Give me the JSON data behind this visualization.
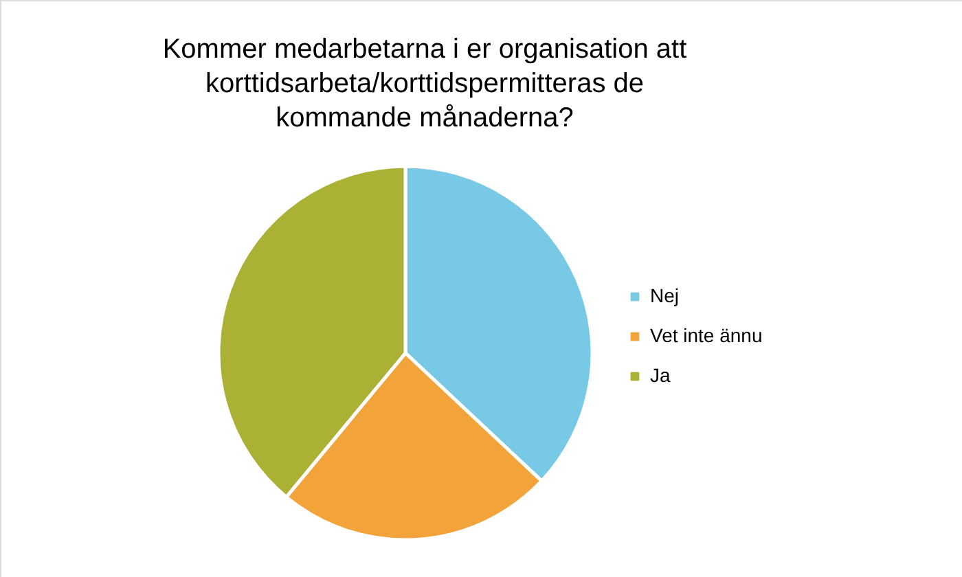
{
  "chart_data": {
    "type": "pie",
    "title": "Kommer medarbetarna i er organisation att korttidsarbeta/korttidspermitteras de kommande månaderna?",
    "categories": [
      "Nej",
      "Vet inte ännu",
      "Ja"
    ],
    "values": [
      37,
      24,
      39
    ],
    "colors": [
      "#78c9e5",
      "#f2a43a",
      "#aab135"
    ],
    "legend": "right"
  }
}
